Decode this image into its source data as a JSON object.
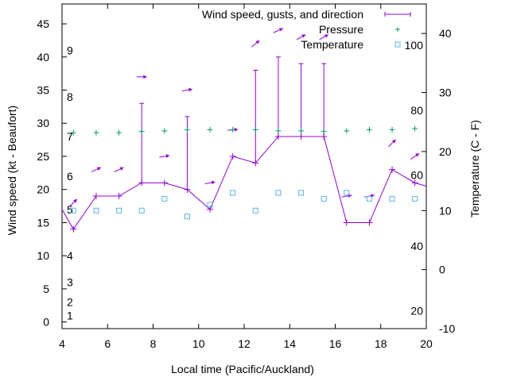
{
  "chart_data": {
    "type": "line",
    "title": "",
    "xlabel": "Local time (Pacific/Auckland)",
    "ylabel": "Wind speed (kt - Beaufort)",
    "y2label": "Temperature (C - F)",
    "xlim": [
      4,
      20
    ],
    "ylim": [
      -1,
      48
    ],
    "y2lim": [
      -10,
      45
    ],
    "xticks": [
      "4",
      "6",
      "8",
      "10",
      "12",
      "14",
      "16",
      "18",
      "20"
    ],
    "yticks": [
      "0",
      "5",
      "10",
      "15",
      "20",
      "25",
      "30",
      "35",
      "40",
      "45"
    ],
    "y2ticks": [
      "-10",
      "0",
      "10",
      "20",
      "30",
      "40"
    ],
    "beaufort_labels": [
      {
        "value": 1,
        "label": "1"
      },
      {
        "value": 3,
        "label": "2"
      },
      {
        "value": 6,
        "label": "3"
      },
      {
        "value": 10,
        "label": "4"
      },
      {
        "value": 17,
        "label": "5"
      },
      {
        "value": 22,
        "label": "6"
      },
      {
        "value": 28,
        "label": "7"
      },
      {
        "value": 34,
        "label": "8"
      },
      {
        "value": 41,
        "label": "9"
      }
    ],
    "fahrenheit_labels": [
      {
        "value": -7,
        "label": "20"
      },
      {
        "value": 4,
        "label": "40"
      },
      {
        "value": 16,
        "label": "60"
      },
      {
        "value": 27,
        "label": "80"
      },
      {
        "value": 38,
        "label": "100"
      }
    ],
    "legend": [
      "Wind speed, gusts, and direction",
      "Pressure",
      "Temperature"
    ],
    "legend_position": "top-right",
    "colors": {
      "wind": "#9400d3",
      "pressure": "#009e73",
      "temperature": "#56b4e9",
      "axes": "#000000"
    },
    "series": [
      {
        "name": "Wind speed",
        "x": [
          4,
          4.5,
          5.5,
          6.5,
          7.5,
          8.5,
          9.5,
          10.5,
          11.5,
          12.5,
          13.5,
          14.5,
          15.5,
          16.5,
          17.5,
          18.5,
          19.5,
          20
        ],
        "values": [
          17,
          14,
          19,
          19,
          21,
          21,
          20,
          17,
          25,
          24,
          28,
          28,
          28,
          15,
          15,
          23,
          21,
          20.5
        ]
      },
      {
        "name": "Gusts",
        "x": [
          7.5,
          9.5,
          12.5,
          13.5,
          14.5,
          15.5
        ],
        "values": [
          33,
          31,
          38,
          40,
          39,
          39
        ]
      },
      {
        "name": "Direction",
        "x": [
          4.5,
          5.5,
          6.5,
          7.5,
          8.5,
          9.5,
          10.5,
          11.5,
          12.5,
          13.5,
          14.5,
          15.5,
          16.5,
          17.5,
          18.5,
          19.5
        ],
        "values": [
          18,
          23,
          23,
          37,
          25,
          35,
          21,
          29,
          42,
          44,
          43,
          43,
          19,
          19,
          27,
          25
        ],
        "angles": [
          45,
          25,
          25,
          0,
          10,
          10,
          10,
          5,
          40,
          25,
          30,
          30,
          10,
          10,
          45,
          35
        ]
      },
      {
        "name": "Pressure",
        "x": [
          4.5,
          5.5,
          6.5,
          7.5,
          8.5,
          9.5,
          10.5,
          11.5,
          12.5,
          13.5,
          14.5,
          15.5,
          16.5,
          17.5,
          18.5,
          19.5
        ],
        "values": [
          23.2,
          23.2,
          23.2,
          23.4,
          23.5,
          23.7,
          23.7,
          23.7,
          23.7,
          23.5,
          23.5,
          23.4,
          23.5,
          23.7,
          23.7,
          23.9
        ]
      },
      {
        "name": "Temperature",
        "x": [
          4.5,
          5.5,
          6.5,
          7.5,
          8.5,
          9.5,
          10.5,
          11.5,
          12.5,
          13.5,
          14.5,
          15.5,
          16.5,
          17.5,
          18.5,
          19.5
        ],
        "values": [
          10,
          10,
          10,
          10,
          12,
          9,
          11,
          13,
          10,
          13,
          13,
          12,
          13,
          12,
          12,
          12
        ]
      }
    ]
  }
}
